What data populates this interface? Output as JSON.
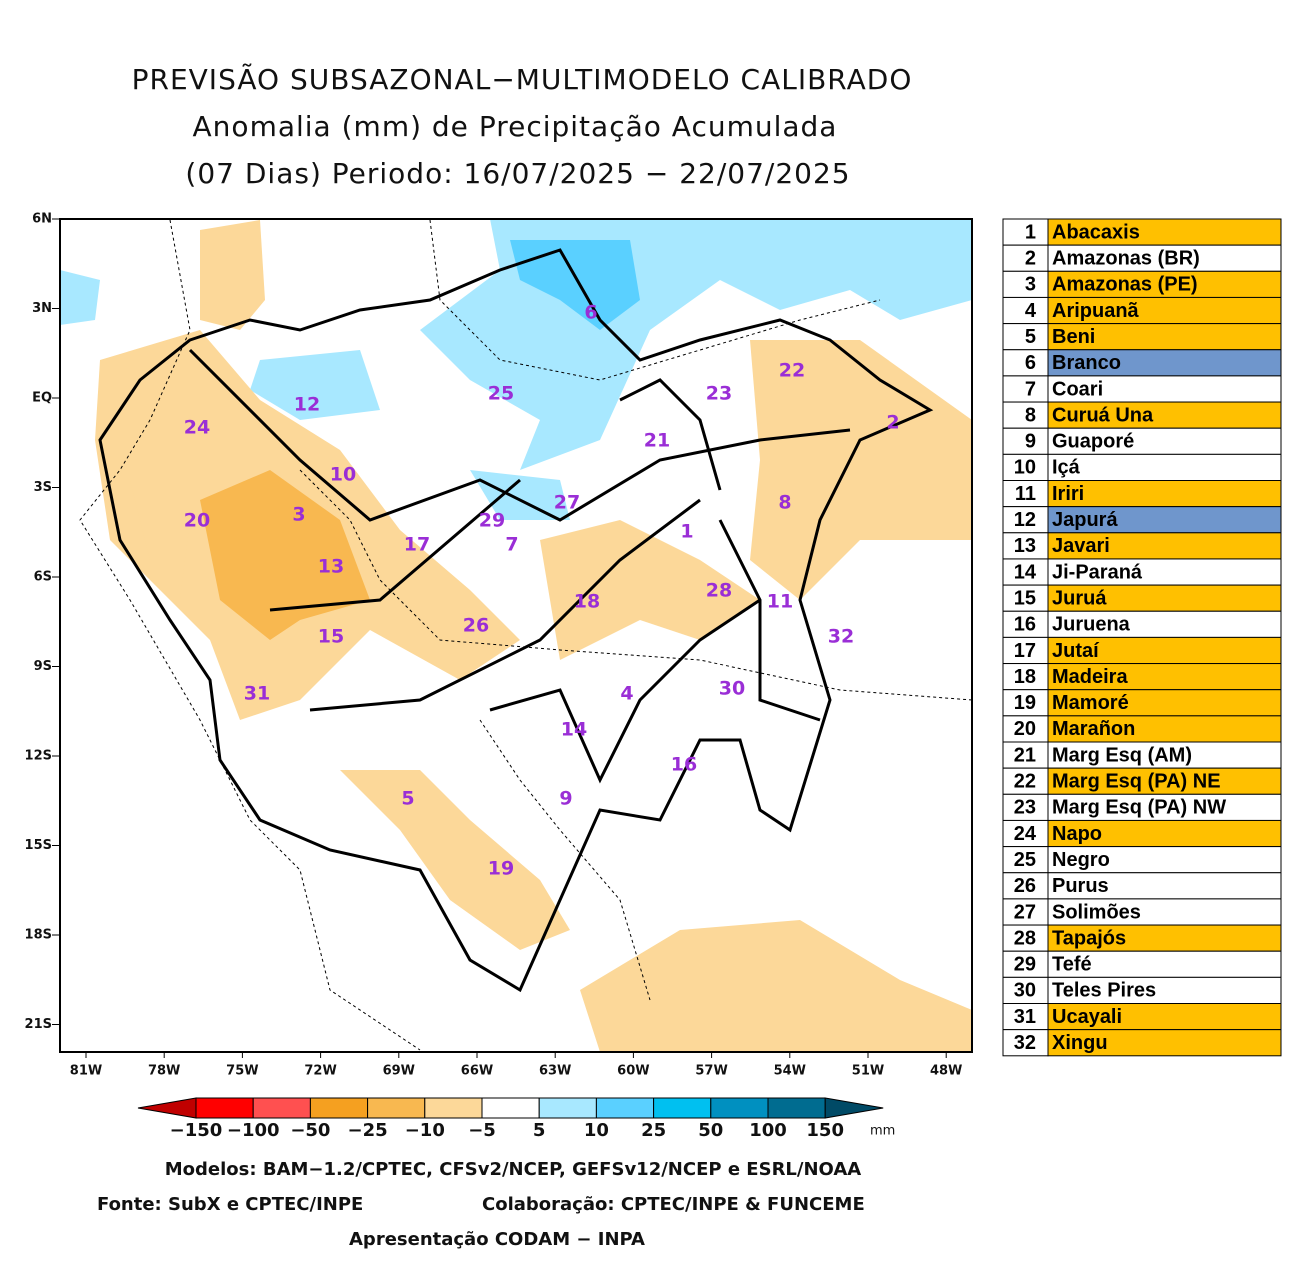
{
  "header": {
    "lines": [
      "PREVISÃO SUBSAZONAL−MULTIMODELO CALIBRADO",
      "Anomalia (mm) de Precipitação Acumulada",
      "(07 Dias) Periodo: 16/07/2025 − 22/07/2025"
    ]
  },
  "map": {
    "lat_labels": [
      "6N",
      "3N",
      "EQ",
      "3S",
      "6S",
      "9S",
      "12S",
      "15S",
      "18S",
      "21S"
    ],
    "lon_labels": [
      "81W",
      "78W",
      "75W",
      "72W",
      "69W",
      "66W",
      "63W",
      "60W",
      "57W",
      "54W",
      "51W",
      "48W"
    ],
    "basin_labels": [
      "1",
      "2",
      "3",
      "4",
      "5",
      "6",
      "7",
      "8",
      "9",
      "10",
      "11",
      "12",
      "13",
      "14",
      "15",
      "16",
      "17",
      "18",
      "19",
      "20",
      "21",
      "22",
      "23",
      "24",
      "25",
      "26",
      "27",
      "28",
      "29",
      "30",
      "31",
      "32"
    ]
  },
  "legend": {
    "rows": [
      {
        "num": "1",
        "name": "Abacaxis",
        "color": "#ffc000"
      },
      {
        "num": "2",
        "name": "Amazonas (BR)",
        "color": "#ffffff"
      },
      {
        "num": "3",
        "name": "Amazonas (PE)",
        "color": "#ffc000"
      },
      {
        "num": "4",
        "name": "Aripuanã",
        "color": "#ffc000"
      },
      {
        "num": "5",
        "name": "Beni",
        "color": "#ffc000"
      },
      {
        "num": "6",
        "name": "Branco",
        "color": "#6f96cc"
      },
      {
        "num": "7",
        "name": "Coari",
        "color": "#ffffff"
      },
      {
        "num": "8",
        "name": "Curuá Una",
        "color": "#ffc000"
      },
      {
        "num": "9",
        "name": "Guaporé",
        "color": "#ffffff"
      },
      {
        "num": "10",
        "name": "Içá",
        "color": "#ffffff"
      },
      {
        "num": "11",
        "name": "Iriri",
        "color": "#ffc000"
      },
      {
        "num": "12",
        "name": "Japurá",
        "color": "#6f96cc"
      },
      {
        "num": "13",
        "name": "Javari",
        "color": "#ffc000"
      },
      {
        "num": "14",
        "name": "Ji-Paraná",
        "color": "#ffffff"
      },
      {
        "num": "15",
        "name": "Juruá",
        "color": "#ffc000"
      },
      {
        "num": "16",
        "name": "Juruena",
        "color": "#ffffff"
      },
      {
        "num": "17",
        "name": "Jutaí",
        "color": "#ffc000"
      },
      {
        "num": "18",
        "name": "Madeira",
        "color": "#ffc000"
      },
      {
        "num": "19",
        "name": "Mamoré",
        "color": "#ffc000"
      },
      {
        "num": "20",
        "name": "Marañon",
        "color": "#ffc000"
      },
      {
        "num": "21",
        "name": "Marg Esq (AM)",
        "color": "#ffffff"
      },
      {
        "num": "22",
        "name": "Marg Esq (PA) NE",
        "color": "#ffc000"
      },
      {
        "num": "23",
        "name": "Marg Esq (PA) NW",
        "color": "#ffffff"
      },
      {
        "num": "24",
        "name": "Napo",
        "color": "#ffc000"
      },
      {
        "num": "25",
        "name": "Negro",
        "color": "#ffffff"
      },
      {
        "num": "26",
        "name": "Purus",
        "color": "#ffffff"
      },
      {
        "num": "27",
        "name": "Solimões",
        "color": "#ffffff"
      },
      {
        "num": "28",
        "name": "Tapajós",
        "color": "#ffc000"
      },
      {
        "num": "29",
        "name": "Tefé",
        "color": "#ffffff"
      },
      {
        "num": "30",
        "name": "Teles Pires",
        "color": "#ffffff"
      },
      {
        "num": "31",
        "name": "Ucayali",
        "color": "#ffc000"
      },
      {
        "num": "32",
        "name": "Xingu",
        "color": "#ffc000"
      }
    ]
  },
  "colorbar": {
    "labels": [
      "−150",
      "−100",
      "−50",
      "−25",
      "−10",
      "−5",
      "5",
      "10",
      "25",
      "50",
      "100",
      "150"
    ],
    "unit": "mm",
    "colors": [
      "#c00000",
      "#ff0000",
      "#ff5050",
      "#f5a020",
      "#f8b850",
      "#fcd899",
      "#ffffff",
      "#a8e8ff",
      "#5ad0ff",
      "#00c0f0",
      "#0090c0",
      "#006c90",
      "#004a66"
    ]
  },
  "footer": {
    "models": "Modelos: BAM−1.2/CPTEC, CFSv2/NCEP, GEFSv12/NCEP e ESRL/NOAA",
    "source": "Fonte: SubX e CPTEC/INPE",
    "collab": "Colaboração: CPTEC/INPE & FUNCEME",
    "presentation": "Apresentação CODAM − INPA"
  }
}
